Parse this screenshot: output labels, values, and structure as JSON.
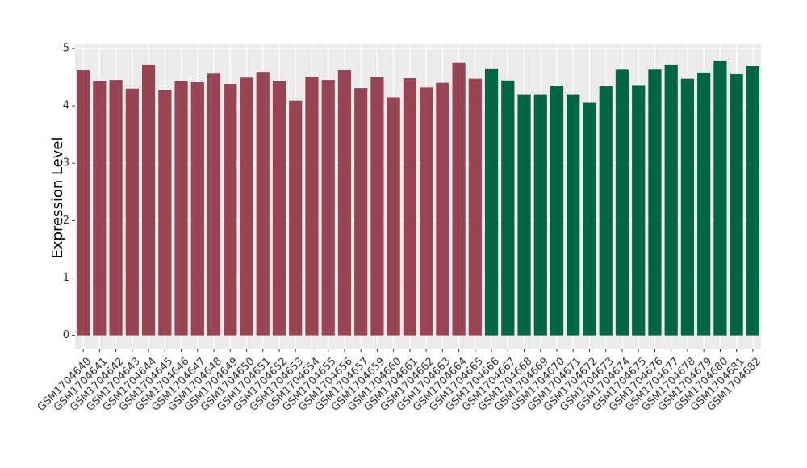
{
  "chart_data": {
    "type": "bar",
    "y_label": "Expression Level",
    "categories": [
      "GSM1704640",
      "GSM1704641",
      "GSM1704642",
      "GSM1704643",
      "GSM1704644",
      "GSM1704645",
      "GSM1704646",
      "GSM1704647",
      "GSM1704648",
      "GSM1704649",
      "GSM1704650",
      "GSM1704651",
      "GSM1704652",
      "GSM1704653",
      "GSM1704654",
      "GSM1704655",
      "GSM1704656",
      "GSM1704657",
      "GSM1704659",
      "GSM1704660",
      "GSM1704661",
      "GSM1704662",
      "GSM1704663",
      "GSM1704664",
      "GSM1704665",
      "GSM1704666",
      "GSM1704667",
      "GSM1704668",
      "GSM1704669",
      "GSM1704670",
      "GSM1704671",
      "GSM1704672",
      "GSM1704673",
      "GSM1704674",
      "GSM1704675",
      "GSM1704676",
      "GSM1704677",
      "GSM1704678",
      "GSM1704679",
      "GSM1704680",
      "GSM1704681",
      "GSM1704682"
    ],
    "values": [
      4.62,
      4.43,
      4.45,
      4.3,
      4.72,
      4.28,
      4.43,
      4.41,
      4.56,
      4.38,
      4.49,
      4.59,
      4.43,
      4.09,
      4.5,
      4.45,
      4.62,
      4.31,
      4.5,
      4.15,
      4.48,
      4.32,
      4.4,
      4.75,
      4.47,
      4.65,
      4.44,
      4.19,
      4.19,
      4.35,
      4.19,
      4.05,
      4.34,
      4.63,
      4.36,
      4.63,
      4.72,
      4.47,
      4.58,
      4.79,
      4.55,
      4.69
    ],
    "colors": [
      "#994455",
      "#994455",
      "#994455",
      "#994455",
      "#994455",
      "#994455",
      "#994455",
      "#994455",
      "#994455",
      "#994455",
      "#994455",
      "#994455",
      "#994455",
      "#994455",
      "#994455",
      "#994455",
      "#994455",
      "#994455",
      "#994455",
      "#994455",
      "#994455",
      "#994455",
      "#994455",
      "#994455",
      "#994455",
      "#006644",
      "#006644",
      "#006644",
      "#006644",
      "#006644",
      "#006644",
      "#006644",
      "#006644",
      "#006644",
      "#006644",
      "#006644",
      "#006644",
      "#006644",
      "#006644",
      "#006644",
      "#006644",
      "#006644"
    ],
    "ylim": [
      -0.23,
      5.07
    ],
    "yticks": [
      0,
      1,
      2,
      3,
      4,
      5
    ],
    "grid": true
  }
}
